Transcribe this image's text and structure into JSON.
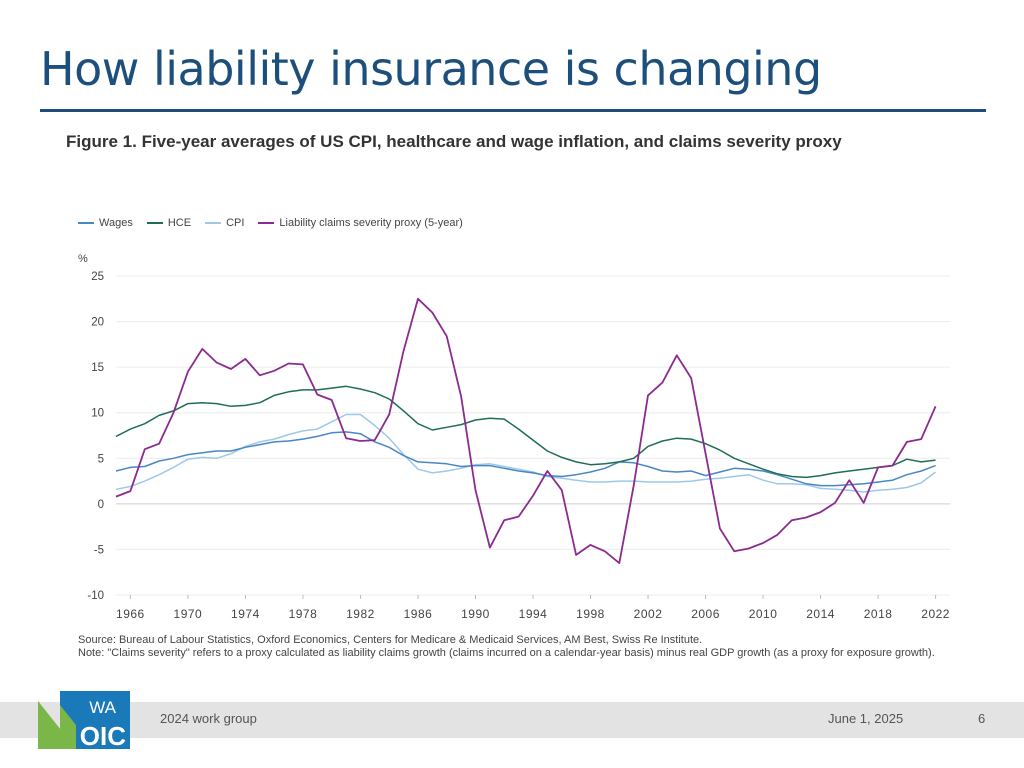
{
  "slide": {
    "title": "How liability insurance is changing",
    "figure_title": "Figure 1. Five-year averages of US CPI, healthcare and wage inflation, and claims severity proxy",
    "source_line1": "Source: Bureau of Labour Statistics, Oxford Economics, Centers for Medicare & Medicaid Services, AM Best, Swiss Re Institute.",
    "source_line2": "Note: \"Claims severity\" refers to a proxy calculated as liability claims growth (claims incurred on a calendar-year basis) minus real GDP growth (as a proxy for exposure growth).",
    "footer_group": "2024 work group",
    "footer_date": "June 1, 2025",
    "page_number": "6",
    "logo_top": "WA",
    "logo_bottom": "OIC",
    "brand_color": "#1d4f7c",
    "logo_green": "#7ab648",
    "logo_blue": "#1a79b8"
  },
  "chart_data": {
    "type": "line",
    "ylabel": "%",
    "ylim": [
      -10,
      25
    ],
    "yticks": [
      "25",
      "20",
      "15",
      "10",
      "5",
      "0",
      "-5",
      "-10"
    ],
    "xlim": [
      1965,
      2023
    ],
    "xticks": [
      "1966",
      "1970",
      "1974",
      "1978",
      "1982",
      "1986",
      "1990",
      "1994",
      "1998",
      "2002",
      "2006",
      "2010",
      "2014",
      "2018",
      "2022"
    ],
    "grid": true,
    "legend_position": "top-left",
    "series": [
      {
        "name": "Wages",
        "color": "#4a86c5",
        "x": [
          1965,
          1966,
          1967,
          1968,
          1969,
          1970,
          1971,
          1972,
          1973,
          1974,
          1975,
          1976,
          1977,
          1978,
          1979,
          1980,
          1981,
          1982,
          1983,
          1984,
          1985,
          1986,
          1987,
          1988,
          1989,
          1990,
          1991,
          1992,
          1993,
          1994,
          1995,
          1996,
          1997,
          1998,
          1999,
          2000,
          2001,
          2002,
          2003,
          2004,
          2005,
          2006,
          2007,
          2008,
          2009,
          2010,
          2011,
          2012,
          2013,
          2014,
          2015,
          2016,
          2017,
          2018,
          2019,
          2020,
          2021,
          2022
        ],
        "values": [
          3.6,
          4.0,
          4.1,
          4.7,
          5.0,
          5.4,
          5.6,
          5.8,
          5.8,
          6.2,
          6.5,
          6.8,
          6.9,
          7.1,
          7.4,
          7.8,
          7.9,
          7.7,
          6.8,
          6.2,
          5.3,
          4.6,
          4.5,
          4.4,
          4.1,
          4.2,
          4.2,
          3.9,
          3.6,
          3.4,
          3.1,
          3.0,
          3.2,
          3.5,
          3.9,
          4.6,
          4.5,
          4.1,
          3.6,
          3.5,
          3.6,
          3.1,
          3.5,
          3.9,
          3.8,
          3.6,
          3.2,
          2.7,
          2.2,
          2.0,
          2.0,
          2.1,
          2.2,
          2.4,
          2.6,
          3.2,
          3.6,
          4.2
        ]
      },
      {
        "name": "HCE",
        "color": "#1e6e55",
        "x": [
          1965,
          1966,
          1967,
          1968,
          1969,
          1970,
          1971,
          1972,
          1973,
          1974,
          1975,
          1976,
          1977,
          1978,
          1979,
          1980,
          1981,
          1982,
          1983,
          1984,
          1985,
          1986,
          1987,
          1988,
          1989,
          1990,
          1991,
          1992,
          1993,
          1994,
          1995,
          1996,
          1997,
          1998,
          1999,
          2000,
          2001,
          2002,
          2003,
          2004,
          2005,
          2006,
          2007,
          2008,
          2009,
          2010,
          2011,
          2012,
          2013,
          2014,
          2015,
          2016,
          2017,
          2018,
          2019,
          2020,
          2021,
          2022
        ],
        "values": [
          7.4,
          8.2,
          8.8,
          9.7,
          10.2,
          11.0,
          11.1,
          11.0,
          10.7,
          10.8,
          11.1,
          11.9,
          12.3,
          12.5,
          12.5,
          12.7,
          12.9,
          12.6,
          12.2,
          11.5,
          10.2,
          8.8,
          8.1,
          8.4,
          8.7,
          9.2,
          9.4,
          9.3,
          8.2,
          7.0,
          5.8,
          5.1,
          4.6,
          4.3,
          4.4,
          4.6,
          5.0,
          6.3,
          6.9,
          7.2,
          7.1,
          6.6,
          5.9,
          5.0,
          4.4,
          3.8,
          3.3,
          3.0,
          2.9,
          3.1,
          3.4,
          3.6,
          3.8,
          4.0,
          4.2,
          4.9,
          4.6,
          4.8
        ]
      },
      {
        "name": "CPI",
        "color": "#9ec8ea",
        "x": [
          1965,
          1966,
          1967,
          1968,
          1969,
          1970,
          1971,
          1972,
          1973,
          1974,
          1975,
          1976,
          1977,
          1978,
          1979,
          1980,
          1981,
          1982,
          1983,
          1984,
          1985,
          1986,
          1987,
          1988,
          1989,
          1990,
          1991,
          1992,
          1993,
          1994,
          1995,
          1996,
          1997,
          1998,
          1999,
          2000,
          2001,
          2002,
          2003,
          2004,
          2005,
          2006,
          2007,
          2008,
          2009,
          2010,
          2011,
          2012,
          2013,
          2014,
          2015,
          2016,
          2017,
          2018,
          2019,
          2020,
          2021,
          2022
        ],
        "values": [
          1.6,
          1.9,
          2.5,
          3.2,
          4.0,
          4.9,
          5.1,
          5.0,
          5.5,
          6.3,
          6.8,
          7.1,
          7.6,
          8.0,
          8.2,
          9.0,
          9.8,
          9.8,
          8.6,
          7.2,
          5.4,
          3.8,
          3.4,
          3.6,
          3.9,
          4.3,
          4.4,
          4.1,
          3.8,
          3.5,
          3.0,
          2.8,
          2.6,
          2.4,
          2.4,
          2.5,
          2.5,
          2.4,
          2.4,
          2.4,
          2.5,
          2.7,
          2.8,
          3.0,
          3.2,
          2.6,
          2.2,
          2.2,
          2.1,
          1.7,
          1.6,
          1.5,
          1.3,
          1.5,
          1.6,
          1.8,
          2.3,
          3.5
        ]
      },
      {
        "name": "Liability claims severity proxy (5-year)",
        "color": "#8b2b8f",
        "x": [
          1965,
          1966,
          1967,
          1968,
          1969,
          1970,
          1971,
          1972,
          1973,
          1974,
          1975,
          1976,
          1977,
          1978,
          1979,
          1980,
          1981,
          1982,
          1983,
          1984,
          1985,
          1986,
          1987,
          1988,
          1989,
          1990,
          1991,
          1992,
          1993,
          1994,
          1995,
          1996,
          1997,
          1998,
          1999,
          2000,
          2001,
          2002,
          2003,
          2004,
          2005,
          2006,
          2007,
          2008,
          2009,
          2010,
          2011,
          2012,
          2013,
          2014,
          2015,
          2016,
          2017,
          2018,
          2019,
          2020,
          2021,
          2022
        ],
        "values": [
          0.8,
          1.4,
          6.0,
          6.6,
          10.0,
          14.5,
          17.0,
          15.5,
          14.8,
          15.9,
          14.1,
          14.6,
          15.4,
          15.3,
          12.0,
          11.4,
          7.2,
          6.9,
          7.0,
          9.8,
          16.8,
          22.5,
          21.0,
          18.4,
          11.8,
          1.5,
          -4.8,
          -1.8,
          -1.4,
          0.9,
          3.6,
          1.5,
          -5.6,
          -4.5,
          -5.2,
          -6.5,
          2.0,
          11.9,
          13.3,
          16.3,
          13.8,
          5.5,
          -2.7,
          -5.2,
          -4.9,
          -4.3,
          -3.4,
          -1.8,
          -1.5,
          -0.9,
          0.1,
          2.6,
          0.1,
          4.0,
          4.2,
          6.8,
          7.1,
          10.7
        ]
      }
    ]
  }
}
